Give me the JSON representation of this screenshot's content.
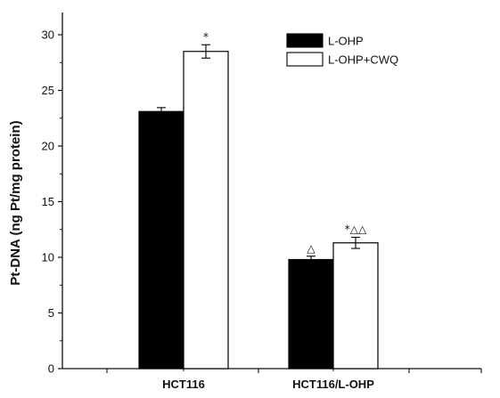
{
  "chart_data": {
    "type": "bar",
    "title": "",
    "xlabel": "",
    "ylabel": "Pt-DNA (ng Pt/mg protein)",
    "ylim": [
      0,
      32
    ],
    "yticks": [
      0,
      5,
      10,
      15,
      20,
      25,
      30
    ],
    "grid": false,
    "legend_position": "top-right",
    "categories": [
      "HCT116",
      "HCT116/L-OHP"
    ],
    "series": [
      {
        "name": "L-OHP",
        "values": [
          23.1,
          9.8
        ],
        "errors": [
          0.35,
          0.3
        ],
        "color": "#000000",
        "annotations": [
          "",
          "△"
        ]
      },
      {
        "name": "L-OHP+CWQ",
        "values": [
          28.5,
          11.3
        ],
        "errors": [
          0.6,
          0.5
        ],
        "color": "#ffffff",
        "annotations": [
          "*",
          "*△△"
        ]
      }
    ]
  }
}
